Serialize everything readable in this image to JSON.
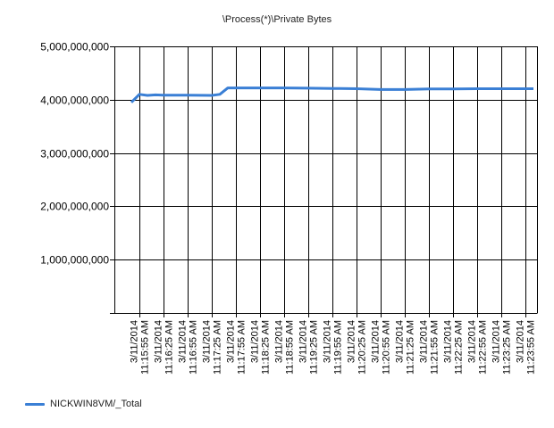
{
  "chart_data": {
    "type": "line",
    "title": "\\Process(*)\\Private Bytes",
    "xlabel": "",
    "ylabel": "",
    "ylim": [
      0,
      5000000000
    ],
    "y_ticks": [
      {
        "value": 1000000000,
        "label": "1,000,000,000"
      },
      {
        "value": 2000000000,
        "label": "2,000,000,000"
      },
      {
        "value": 3000000000,
        "label": "3,000,000,000"
      },
      {
        "value": 4000000000,
        "label": "4,000,000,000"
      },
      {
        "value": 5000000000,
        "label": "5,000,000,000"
      }
    ],
    "x_ticks": [
      {
        "date": "3/11/2014",
        "time": "11:15:55 AM"
      },
      {
        "date": "3/11/2014",
        "time": "11:16:25 AM"
      },
      {
        "date": "3/11/2014",
        "time": "11:16:55 AM"
      },
      {
        "date": "3/11/2014",
        "time": "11:17:25 AM"
      },
      {
        "date": "3/11/2014",
        "time": "11:17:55 AM"
      },
      {
        "date": "3/11/2014",
        "time": "11:18:25 AM"
      },
      {
        "date": "3/11/2014",
        "time": "11:18:55 AM"
      },
      {
        "date": "3/11/2014",
        "time": "11:19:25 AM"
      },
      {
        "date": "3/11/2014",
        "time": "11:19:55 AM"
      },
      {
        "date": "3/11/2014",
        "time": "11:20:25 AM"
      },
      {
        "date": "3/11/2014",
        "time": "11:20:55 AM"
      },
      {
        "date": "3/11/2014",
        "time": "11:21:25 AM"
      },
      {
        "date": "3/11/2014",
        "time": "11:21:55 AM"
      },
      {
        "date": "3/11/2014",
        "time": "11:22:25 AM"
      },
      {
        "date": "3/11/2014",
        "time": "11:22:55 AM"
      },
      {
        "date": "3/11/2014",
        "time": "11:23:25 AM"
      },
      {
        "date": "3/11/2014",
        "time": "11:23:55 AM"
      }
    ],
    "series": [
      {
        "name": "NICKWIN8VM/_Total",
        "color": "#3a7fd5",
        "points": [
          {
            "x": "11:15:45 AM",
            "y": 3950000000
          },
          {
            "x": "11:15:55 AM",
            "y": 4100000000
          },
          {
            "x": "11:16:05 AM",
            "y": 4080000000
          },
          {
            "x": "11:16:15 AM",
            "y": 4090000000
          },
          {
            "x": "11:16:25 AM",
            "y": 4085000000
          },
          {
            "x": "11:16:55 AM",
            "y": 4085000000
          },
          {
            "x": "11:17:25 AM",
            "y": 4080000000
          },
          {
            "x": "11:17:35 AM",
            "y": 4100000000
          },
          {
            "x": "11:17:45 AM",
            "y": 4220000000
          },
          {
            "x": "11:17:55 AM",
            "y": 4220000000
          },
          {
            "x": "11:18:25 AM",
            "y": 4220000000
          },
          {
            "x": "11:18:55 AM",
            "y": 4220000000
          },
          {
            "x": "11:19:25 AM",
            "y": 4215000000
          },
          {
            "x": "11:19:55 AM",
            "y": 4210000000
          },
          {
            "x": "11:20:25 AM",
            "y": 4205000000
          },
          {
            "x": "11:20:55 AM",
            "y": 4190000000
          },
          {
            "x": "11:21:25 AM",
            "y": 4190000000
          },
          {
            "x": "11:21:55 AM",
            "y": 4200000000
          },
          {
            "x": "11:22:25 AM",
            "y": 4200000000
          },
          {
            "x": "11:22:55 AM",
            "y": 4205000000
          },
          {
            "x": "11:23:25 AM",
            "y": 4205000000
          },
          {
            "x": "11:23:55 AM",
            "y": 4205000000
          },
          {
            "x": "11:24:05 AM",
            "y": 4205000000
          }
        ]
      }
    ],
    "grid": true,
    "legend_position": "bottom-left"
  }
}
